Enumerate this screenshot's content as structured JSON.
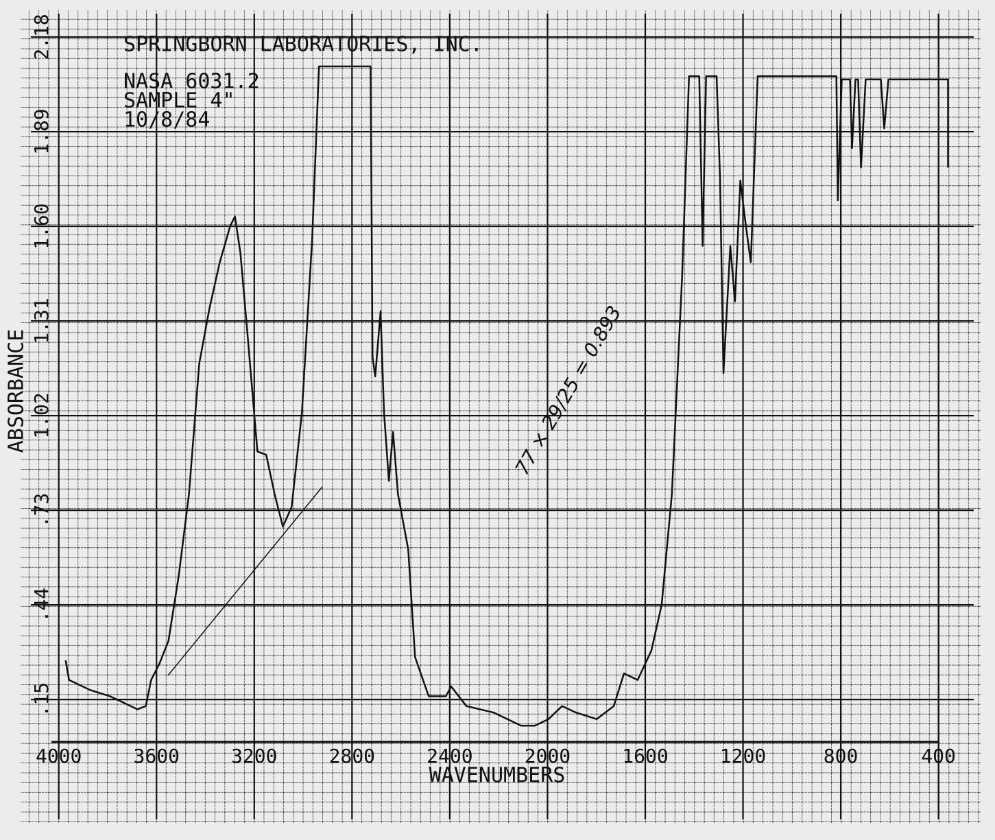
{
  "chart_data": {
    "type": "line",
    "title": "SPRINGBORN LABORATORIES, INC.",
    "annotations": [
      "NASA 6031.2",
      "SAMPLE 4\"",
      "10/8/84",
      "77 × 29/25 = 0.893"
    ],
    "x_label": "WAVENUMBERS",
    "y_label": "ABSORBANCE",
    "x": [
      3972,
      3958,
      3874,
      3790,
      3734,
      3678,
      3644,
      3622,
      3588,
      3551,
      3509,
      3467,
      3425,
      3383,
      3341,
      3299,
      3279,
      3257,
      3229,
      3187,
      3151,
      3117,
      3083,
      3047,
      3005,
      2963,
      2935,
      2724,
      2716,
      2705,
      2683,
      2669,
      2649,
      2632,
      2612,
      2570,
      2542,
      2486,
      2416,
      2394,
      2332,
      2220,
      2108,
      2052,
      1996,
      1940,
      1883,
      1799,
      1729,
      1687,
      1631,
      1575,
      1533,
      1491,
      1449,
      1421,
      1379,
      1365,
      1351,
      1308,
      1294,
      1280,
      1252,
      1233,
      1211,
      1188,
      1168,
      1140,
      818,
      812,
      796,
      762,
      754,
      740,
      729,
      717,
      698,
      636,
      622,
      605,
      361,
      361
    ],
    "values": [
      0.27,
      0.21,
      0.18,
      0.16,
      0.14,
      0.12,
      0.13,
      0.21,
      0.26,
      0.33,
      0.53,
      0.78,
      1.18,
      1.35,
      1.49,
      1.6,
      1.63,
      1.52,
      1.28,
      0.91,
      0.9,
      0.78,
      0.68,
      0.74,
      1.03,
      1.56,
      2.09,
      2.09,
      1.2,
      1.14,
      1.34,
      1.03,
      0.82,
      0.97,
      0.78,
      0.61,
      0.28,
      0.16,
      0.16,
      0.19,
      0.13,
      0.11,
      0.07,
      0.07,
      0.09,
      0.13,
      0.11,
      0.09,
      0.13,
      0.23,
      0.21,
      0.3,
      0.44,
      0.78,
      1.45,
      2.06,
      2.06,
      1.54,
      2.06,
      2.06,
      1.75,
      1.15,
      1.54,
      1.37,
      1.74,
      1.6,
      1.49,
      2.06,
      2.06,
      1.68,
      2.05,
      2.05,
      1.84,
      2.05,
      2.05,
      1.78,
      2.05,
      2.05,
      1.9,
      2.05,
      2.05,
      1.78
    ],
    "color": "#111111",
    "xlim": [
      4030,
      340
    ],
    "xticks": [
      4000,
      3600,
      3200,
      2800,
      2400,
      2000,
      1600,
      1200,
      800,
      400
    ],
    "ylim": [
      0.02,
      2.22
    ],
    "yticks": [
      {
        "value": 0.15,
        "label": ".15"
      },
      {
        "value": 0.44,
        "label": ".44"
      },
      {
        "value": 0.73,
        "label": ".73"
      },
      {
        "value": 1.02,
        "label": "1.02"
      },
      {
        "value": 1.31,
        "label": "1.31"
      },
      {
        "value": 1.6,
        "label": "1.60"
      },
      {
        "value": 1.89,
        "label": "1.89"
      },
      {
        "value": 2.18,
        "label": "2.18"
      }
    ],
    "grid": true
  }
}
